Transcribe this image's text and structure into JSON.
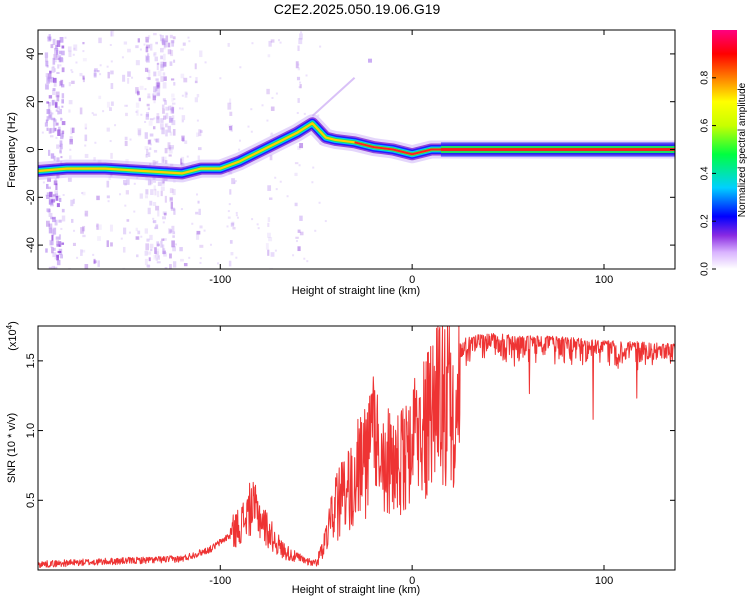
{
  "title": "C2E2.2025.050.19.06.G19",
  "chart_data": [
    {
      "type": "heatmap",
      "xlabel": "Height of straight line (km)",
      "ylabel": "Frequency (Hz)",
      "xlim": [
        -195,
        137
      ],
      "ylim": [
        -50,
        50
      ],
      "xticks": [
        -100,
        0,
        100
      ],
      "xtick_labels": [
        "-100",
        "0",
        "100"
      ],
      "yticks": [
        -40,
        -20,
        0,
        20,
        40
      ],
      "ytick_labels": [
        "-40",
        "-20",
        "0",
        "20",
        "40"
      ],
      "colorbar": {
        "label": "Normalized spectral amplitude",
        "range": [
          0,
          1
        ],
        "ticks": [
          0.0,
          0.2,
          0.4,
          0.6,
          0.8
        ],
        "tick_labels": [
          "0.0",
          "0.2",
          "0.4",
          "0.6",
          "0.8"
        ],
        "colors": [
          "#ffffff",
          "#d9b3ff",
          "#8a2be2",
          "#0000ff",
          "#00d0ff",
          "#00ff40",
          "#c8ff00",
          "#ffff00",
          "#ff8000",
          "#ff0000",
          "#ff0080"
        ]
      },
      "main_track": [
        {
          "x": -195,
          "y": -9
        },
        {
          "x": -180,
          "y": -8
        },
        {
          "x": -160,
          "y": -8
        },
        {
          "x": -140,
          "y": -9
        },
        {
          "x": -120,
          "y": -10
        },
        {
          "x": -110,
          "y": -8
        },
        {
          "x": -100,
          "y": -8
        },
        {
          "x": -90,
          "y": -5
        },
        {
          "x": -80,
          "y": -1
        },
        {
          "x": -70,
          "y": 3
        },
        {
          "x": -60,
          "y": 7
        },
        {
          "x": -52,
          "y": 11
        },
        {
          "x": -45,
          "y": 5
        },
        {
          "x": -40,
          "y": 4
        },
        {
          "x": -30,
          "y": 3
        },
        {
          "x": -20,
          "y": 1
        },
        {
          "x": -10,
          "y": 0
        },
        {
          "x": 0,
          "y": -2
        },
        {
          "x": 10,
          "y": 0
        },
        {
          "x": 20,
          "y": 0
        },
        {
          "x": 60,
          "y": 0
        },
        {
          "x": 100,
          "y": 0
        },
        {
          "x": 137,
          "y": 0
        }
      ]
    },
    {
      "type": "line",
      "xlabel": "Height of straight line (km)",
      "ylabel": "SNR (10 * v/v)",
      "multiplier_label": "(x10",
      "multiplier_exp": "4",
      "multiplier_close": ")",
      "xlim": [
        -195,
        137
      ],
      "ylim": [
        0,
        17500
      ],
      "xticks": [
        -100,
        0,
        100
      ],
      "xtick_labels": [
        "-100",
        "0",
        "100"
      ],
      "yticks": [
        5000,
        10000,
        15000
      ],
      "ytick_labels": [
        "0.5",
        "1.0",
        "1.5"
      ],
      "color": "#ee3333",
      "series": [
        {
          "x": [
            -195,
            -180,
            -160,
            -140,
            -120,
            -105,
            -95,
            -88,
            -84,
            -80,
            -76,
            -72,
            -68,
            -62,
            -56,
            -50,
            -46,
            -42,
            -38,
            -34,
            -30,
            -26,
            -22,
            -18,
            -14,
            -10,
            -6,
            -2,
            2,
            6,
            10,
            14,
            18,
            22,
            26,
            30,
            40,
            50,
            60,
            70,
            80,
            90,
            100,
            110,
            120,
            130,
            137
          ],
          "y": [
            400,
            500,
            600,
            700,
            800,
            1500,
            2500,
            3500,
            4500,
            4000,
            3000,
            2200,
            1500,
            1000,
            700,
            600,
            2000,
            4500,
            6000,
            6500,
            8000,
            9500,
            10500,
            12000,
            10000,
            8500,
            9000,
            10000,
            11000,
            12500,
            14000,
            15000,
            15800,
            16000,
            16500,
            16800,
            17000,
            16900,
            16800,
            16800,
            16700,
            16600,
            16500,
            16400,
            16400,
            16300,
            16200
          ]
        }
      ]
    }
  ]
}
